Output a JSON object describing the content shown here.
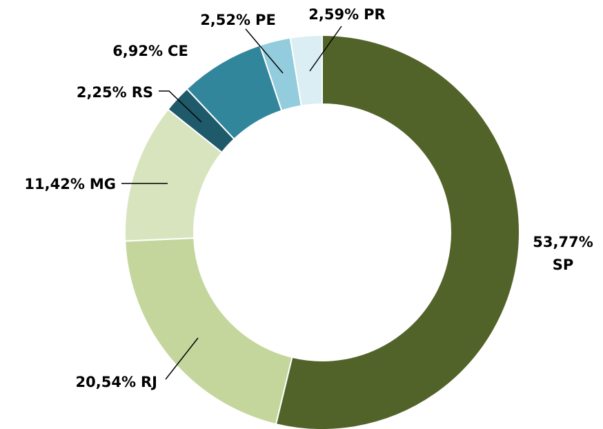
{
  "chart_data": {
    "type": "donut",
    "categories": [
      "SP",
      "RJ",
      "MG",
      "RS",
      "CE",
      "PE",
      "PR"
    ],
    "values": [
      53.77,
      20.54,
      11.42,
      2.25,
      6.92,
      2.52,
      2.59
    ],
    "value_labels": [
      "53,77%",
      "20,54%",
      "11,42%",
      "2,25%",
      "6,92%",
      "2,52%",
      "2,59%"
    ],
    "colors": [
      "#526329",
      "#c4d69b",
      "#d8e4bd",
      "#1f5a6b",
      "#31869b",
      "#93cddd",
      "#daeef3"
    ]
  }
}
